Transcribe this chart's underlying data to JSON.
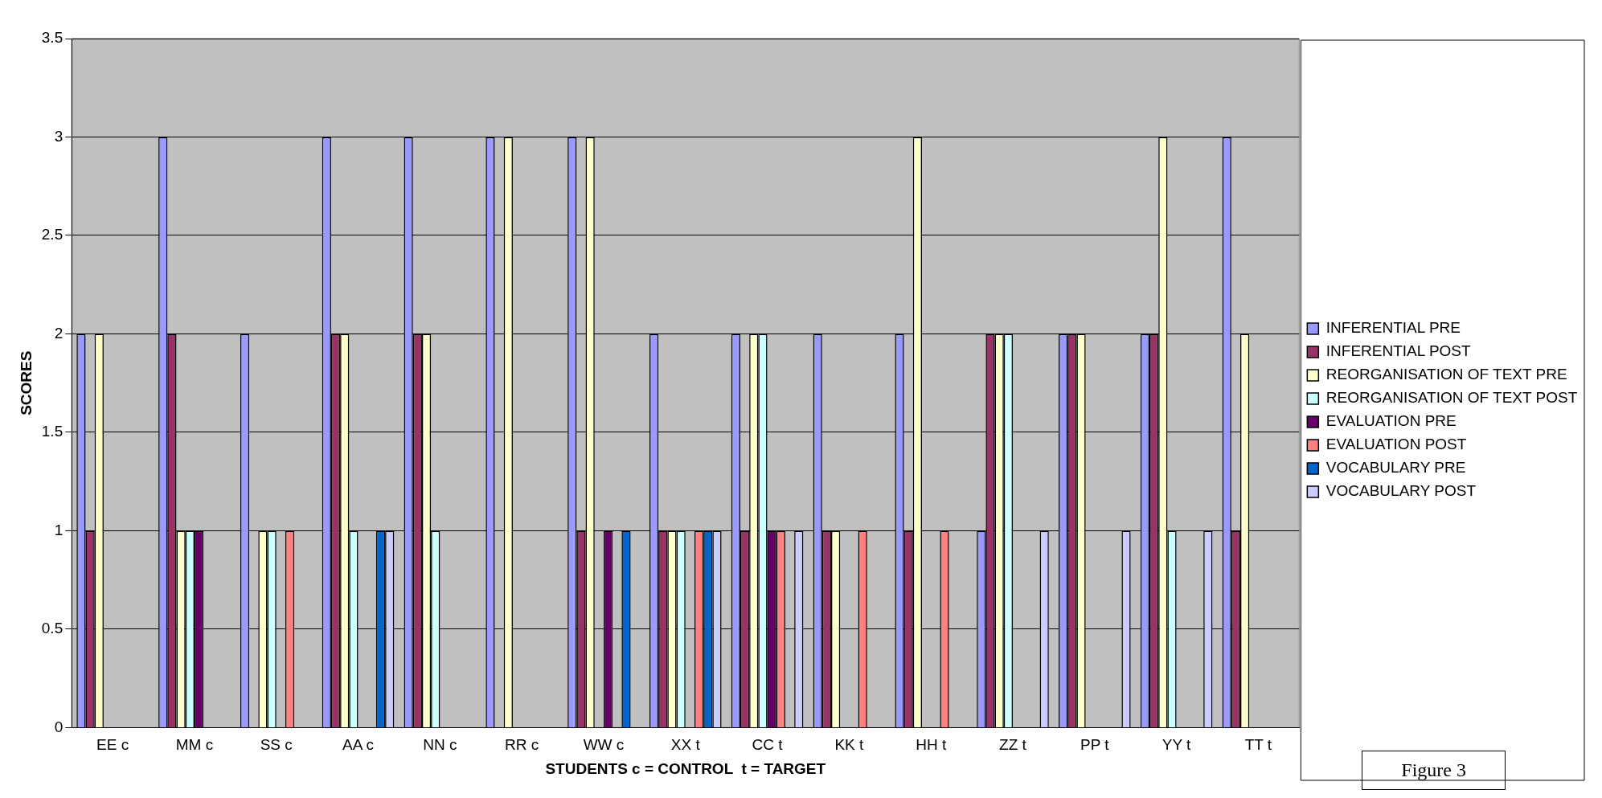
{
  "chart_data": {
    "type": "bar",
    "xlabel": "STUDENTS c = CONTROL  t = TARGET",
    "ylabel": "SCORES",
    "categories": [
      "EE c",
      "MM c",
      "SS c",
      "AA c",
      "NN c",
      "RR c",
      "WW c",
      "XX t",
      "CC t",
      "KK t",
      "HH t",
      "ZZ t",
      "PP t",
      "YY t",
      "TT t"
    ],
    "series": [
      {
        "name": "INFERENTIAL PRE",
        "color": "#9999ff",
        "values": [
          2,
          3,
          2,
          3,
          3,
          3,
          3,
          2,
          2,
          2,
          2,
          1,
          2,
          2,
          3
        ]
      },
      {
        "name": "INFERENTIAL POST",
        "color": "#993366",
        "values": [
          1,
          2,
          0,
          2,
          2,
          0,
          1,
          1,
          1,
          1,
          1,
          2,
          2,
          2,
          1
        ]
      },
      {
        "name": "REORGANISATION OF TEXT PRE",
        "color": "#ffffcc",
        "values": [
          2,
          1,
          1,
          2,
          2,
          3,
          3,
          1,
          2,
          1,
          3,
          2,
          2,
          3,
          2
        ]
      },
      {
        "name": "REORGANISATION OF TEXT POST",
        "color": "#ccffff",
        "values": [
          0,
          1,
          1,
          1,
          1,
          0,
          0,
          1,
          2,
          0,
          0,
          2,
          0,
          1,
          0
        ]
      },
      {
        "name": "EVALUATION PRE",
        "color": "#660066",
        "values": [
          0,
          1,
          0,
          0,
          0,
          0,
          1,
          0,
          1,
          0,
          0,
          0,
          0,
          0,
          0
        ]
      },
      {
        "name": "EVALUATION POST",
        "color": "#ff8080",
        "values": [
          0,
          0,
          1,
          0,
          0,
          0,
          0,
          1,
          1,
          1,
          1,
          0,
          0,
          0,
          0
        ]
      },
      {
        "name": "VOCABULARY PRE",
        "color": "#0066cc",
        "values": [
          0,
          0,
          0,
          1,
          0,
          0,
          1,
          1,
          0,
          0,
          0,
          0,
          0,
          0,
          0
        ]
      },
      {
        "name": "VOCABULARY POST",
        "color": "#ccccff",
        "values": [
          0,
          0,
          0,
          1,
          0,
          0,
          0,
          1,
          1,
          0,
          0,
          1,
          1,
          1,
          0
        ]
      }
    ],
    "ylim": [
      0,
      3.5
    ],
    "yticks": [
      0,
      0.5,
      1,
      1.5,
      2,
      2.5,
      3,
      3.5
    ],
    "grid": "y",
    "legend": "right",
    "annotations": [
      "Figure 3"
    ]
  }
}
